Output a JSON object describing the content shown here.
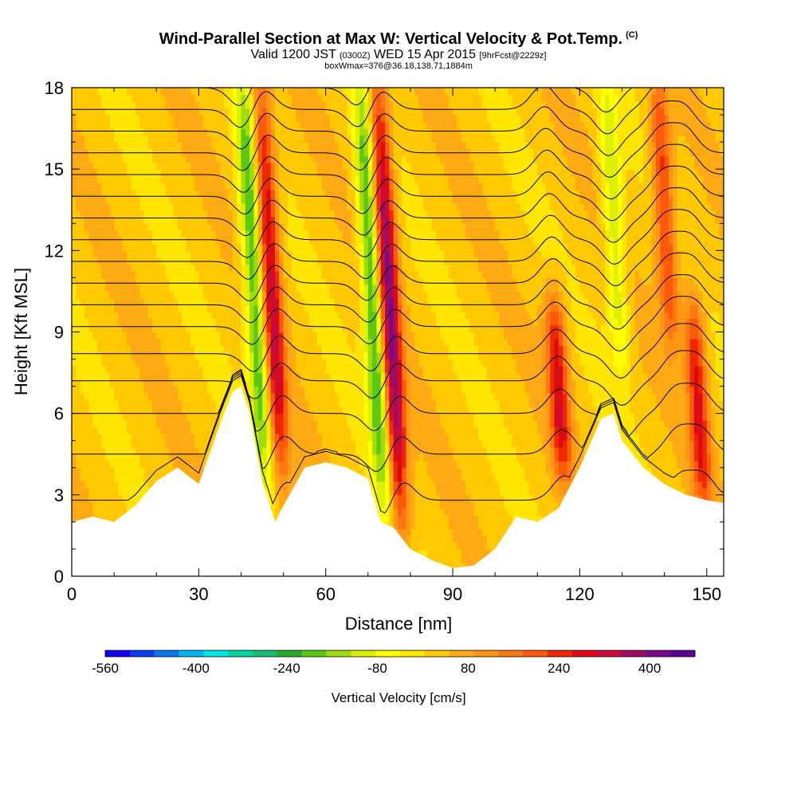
{
  "header": {
    "title": "Wind-Parallel Section at Max W: Vertical Velocity & Pot.Temp.",
    "title_mark": "(C)",
    "valid_prefix": "Valid 1200 JST",
    "valid_utc": "(0300Z)",
    "valid_date": "WED 15 Apr 2015",
    "forecast": "[9hrFcst@2229z]",
    "box_info": "boxWmax=376@36.18,138.71,1884m"
  },
  "colors": {
    "contour_line": "#000000",
    "terrain": "#ffffff",
    "palette": [
      "#1400f0",
      "#0a3cf0",
      "#0a78f0",
      "#00b4f0",
      "#00e6e6",
      "#00d2a0",
      "#14be6e",
      "#28aa28",
      "#5ac814",
      "#a0dc0a",
      "#dcf000",
      "#ffff00",
      "#ffe600",
      "#ffc800",
      "#ffaa14",
      "#ff9614",
      "#ff7814",
      "#ff5a0a",
      "#f02800",
      "#dc0a14",
      "#c80a3c",
      "#a00a64",
      "#780a8c",
      "#5a0096"
    ]
  },
  "chart_data": {
    "type": "heatmap",
    "xlabel": "Distance [nm]",
    "ylabel": "Height [Kft MSL]",
    "xlim": [
      0,
      154
    ],
    "ylim": [
      0,
      18
    ],
    "xticks": [
      0,
      30,
      60,
      90,
      120,
      150
    ],
    "yticks": [
      0,
      3,
      6,
      9,
      12,
      15,
      18
    ],
    "colorbar": {
      "label": "Vertical Velocity [cm/s]",
      "range": [
        -560,
        480
      ],
      "tick_values": [
        -560,
        -400,
        -240,
        -80,
        80,
        240,
        400
      ],
      "tick_labels": [
        "-560",
        "-400",
        "-240",
        "-80",
        "80",
        "240",
        "400"
      ]
    },
    "vertical_velocity_features": [
      {
        "kind": "updraft",
        "x": 47,
        "z_range": [
          4,
          18
        ],
        "peak": 300
      },
      {
        "kind": "downdraft",
        "x": 43,
        "z_range": [
          4,
          18
        ],
        "peak": -250
      },
      {
        "kind": "updraft",
        "x": 75,
        "z_range": [
          2,
          18
        ],
        "peak": 376
      },
      {
        "kind": "downdraft",
        "x": 71,
        "z_range": [
          3,
          18
        ],
        "peak": -260
      },
      {
        "kind": "updraft",
        "x": 115,
        "z_range": [
          4,
          10
        ],
        "peak": 260
      },
      {
        "kind": "updraft",
        "x": 140,
        "z_range": [
          9,
          18
        ],
        "peak": 220
      },
      {
        "kind": "updraft",
        "x": 148,
        "z_range": [
          3,
          10
        ],
        "peak": 250
      },
      {
        "kind": "downdraft",
        "x": 128,
        "z_range": [
          8,
          18
        ],
        "peak": -150
      }
    ],
    "terrain_profile": {
      "x": [
        0,
        5,
        10,
        15,
        20,
        25,
        30,
        35,
        38,
        40,
        42,
        45,
        48,
        50,
        55,
        60,
        65,
        70,
        73,
        76,
        80,
        85,
        90,
        95,
        100,
        105,
        110,
        115,
        120,
        125,
        128,
        130,
        135,
        140,
        145,
        150,
        154
      ],
      "z": [
        2.0,
        2.2,
        2.0,
        2.6,
        3.5,
        4.0,
        3.4,
        5.6,
        6.8,
        7.0,
        6.0,
        3.5,
        2.0,
        2.6,
        4.0,
        4.2,
        4.0,
        3.6,
        2.0,
        1.8,
        1.0,
        0.6,
        0.3,
        0.4,
        1.0,
        2.2,
        2.0,
        2.5,
        4.0,
        5.8,
        6.0,
        5.0,
        4.0,
        3.4,
        3.0,
        2.8,
        2.7
      ]
    },
    "isentropes_base_height": [
      2.8,
      4.5,
      6.0,
      7.2,
      8.2,
      9.2,
      10.0,
      10.8,
      11.6,
      12.4,
      13.2,
      14.0,
      14.8,
      15.6,
      16.4,
      17.2,
      18.0
    ]
  }
}
